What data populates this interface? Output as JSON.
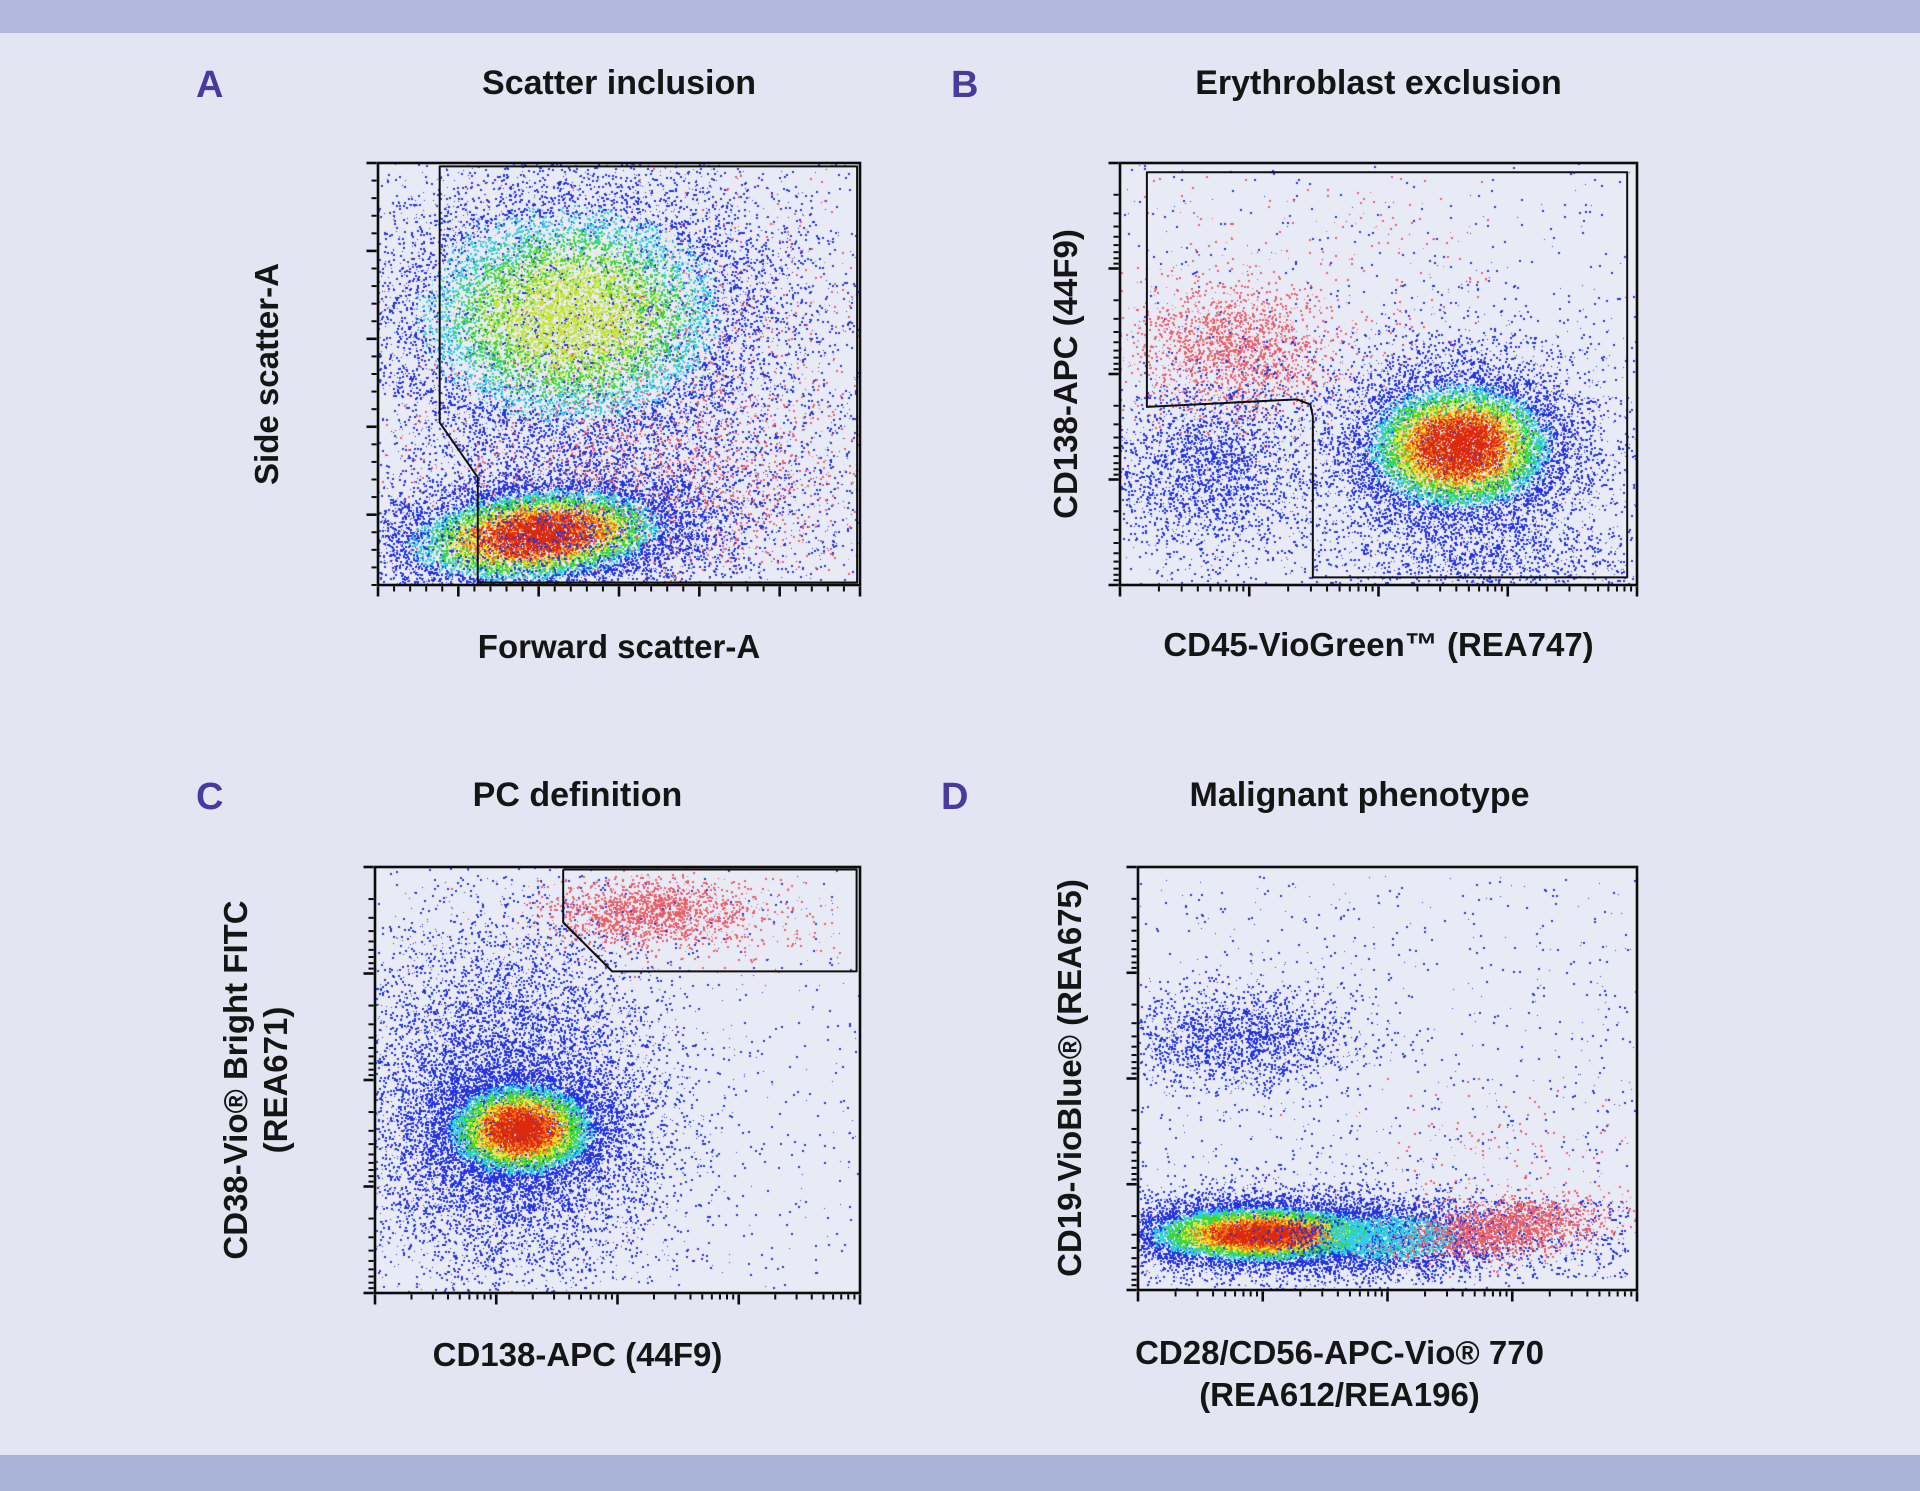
{
  "figure": {
    "background_color": "#e3e5f2",
    "band_color": "#b2b9dc",
    "bottom_band_color": "#aab3d8",
    "panel_letter_color": "#483a9e",
    "title_color": "#151515",
    "plot_background": "#e8eaf5",
    "frame_color": "#0c0c0c",
    "gate_color": "#0f0f0f"
  },
  "palettes": {
    "jet": [
      [
        0.78,
        "#dc2a0e"
      ],
      [
        0.65,
        "#f07818"
      ],
      [
        0.53,
        "#efe32a"
      ],
      [
        0.37,
        "#3cd736"
      ],
      [
        0.25,
        "#30cfe0"
      ],
      [
        -1,
        "#2433e2"
      ]
    ],
    "green": [
      [
        0.74,
        "#c3e531"
      ],
      [
        0.52,
        "#3ed636"
      ],
      [
        0.33,
        "#33cfde"
      ],
      [
        -1,
        "#2433e2"
      ]
    ],
    "cyan": [
      [
        0.45,
        "#33cfde"
      ],
      [
        -1,
        "#2433e2"
      ]
    ],
    "blue": [
      [
        -1,
        "#2433e2"
      ]
    ],
    "pink": [
      [
        -1,
        "#e95f69"
      ]
    ]
  },
  "chart_data": [
    {
      "panel": "A",
      "letter": "A",
      "title": "Scatter inclusion",
      "type": "scatter",
      "subtype": "flow-cytometry-density",
      "xlabel_line1": "Forward scatter-A",
      "xlabel_line2": "",
      "ylabel_line1": "Side scatter-A",
      "ylabel_line2": "",
      "x_axis": {
        "scale": "linear",
        "minors": 30,
        "major_every": 5
      },
      "y_axis": {
        "scale": "linear",
        "minors": 24,
        "major_every": 5
      },
      "gate": {
        "closed": true,
        "points": [
          [
            0.128,
            0.008
          ],
          [
            0.994,
            0.008
          ],
          [
            0.994,
            0.994
          ],
          [
            0.207,
            0.994
          ],
          [
            0.207,
            0.745
          ],
          [
            0.128,
            0.615
          ]
        ]
      },
      "clusters": [
        {
          "type": "flat",
          "palette": "blue",
          "cx": 0.5,
          "cy": 0.4,
          "sx": 0.34,
          "sy": 0.3,
          "count": 4500
        },
        {
          "type": "flat",
          "palette": "blue",
          "cx": 0.45,
          "cy": 0.78,
          "sx": 0.3,
          "sy": 0.13,
          "count": 1800
        },
        {
          "type": "density",
          "palette": "green",
          "cx": 0.4,
          "cy": 0.36,
          "sx": 0.205,
          "sy": 0.165,
          "count": 11000
        },
        {
          "type": "flat",
          "palette": "pink",
          "cx": 0.58,
          "cy": 0.7,
          "sx": 0.27,
          "sy": 0.13,
          "count": 1100
        },
        {
          "type": "flat",
          "palette": "pink",
          "cx": 0.78,
          "cy": 0.42,
          "sx": 0.18,
          "sy": 0.26,
          "count": 420
        },
        {
          "type": "density",
          "palette": "jet",
          "cx": 0.33,
          "cy": 0.88,
          "sx": 0.155,
          "sy": 0.062,
          "rot": -6,
          "count": 9500
        },
        {
          "type": "flat",
          "palette": "blue",
          "cx": 0.42,
          "cy": 0.88,
          "sx": 0.27,
          "sy": 0.09,
          "count": 1500
        },
        {
          "type": "flat",
          "palette": "pink",
          "cx": 0.62,
          "cy": 0.82,
          "sx": 0.18,
          "sy": 0.08,
          "count": 350
        }
      ]
    },
    {
      "panel": "B",
      "letter": "B",
      "title": "Erythroblast exclusion",
      "type": "scatter",
      "subtype": "flow-cytometry-density",
      "xlabel_line1": "CD45-VioGreen™ (REA747)",
      "xlabel_line2": "",
      "ylabel_line1": "CD138-APC (44F9)",
      "ylabel_line2": "",
      "x_axis": {
        "scale": "log",
        "decades": 4
      },
      "y_axis": {
        "scale": "log",
        "decades": 4
      },
      "gate": {
        "closed": true,
        "points": [
          [
            0.052,
            0.022
          ],
          [
            0.981,
            0.022
          ],
          [
            0.981,
            0.982
          ],
          [
            0.373,
            0.982
          ],
          [
            0.373,
            0.6
          ],
          [
            0.368,
            0.572
          ],
          [
            0.342,
            0.56
          ],
          [
            0.052,
            0.578
          ]
        ]
      },
      "clusters": [
        {
          "type": "uniform",
          "palette": "blue",
          "x0": 0.0,
          "y0": 0.0,
          "x1": 1.0,
          "y1": 1.0,
          "count": 650
        },
        {
          "type": "uniform",
          "palette": "pink",
          "x0": 0.02,
          "y0": 0.03,
          "x1": 0.72,
          "y1": 0.52,
          "count": 230
        },
        {
          "type": "flat",
          "palette": "pink",
          "cx": 0.22,
          "cy": 0.44,
          "sx": 0.095,
          "sy": 0.082,
          "count": 1900
        },
        {
          "type": "flat",
          "palette": "blue",
          "cx": 0.165,
          "cy": 0.72,
          "sx": 0.1,
          "sy": 0.105,
          "count": 2300
        },
        {
          "type": "flat",
          "palette": "blue",
          "cx": 0.66,
          "cy": 0.69,
          "sx": 0.175,
          "sy": 0.16,
          "count": 3200
        },
        {
          "type": "density",
          "palette": "jet",
          "cx": 0.655,
          "cy": 0.67,
          "sx": 0.105,
          "sy": 0.088,
          "count": 10000
        },
        {
          "type": "flat",
          "palette": "blue",
          "cx": 0.72,
          "cy": 0.94,
          "sx": 0.16,
          "sy": 0.05,
          "count": 900
        }
      ]
    },
    {
      "panel": "C",
      "letter": "C",
      "title": "PC definition",
      "type": "scatter",
      "subtype": "flow-cytometry-density",
      "xlabel_line1": "CD138-APC (44F9)",
      "xlabel_line2": "",
      "ylabel_line1": "CD38-Vio® Bright FITC",
      "ylabel_line2": "(REA671)",
      "x_axis": {
        "scale": "log",
        "decades": 4
      },
      "y_axis": {
        "scale": "log",
        "decades": 4
      },
      "gate": {
        "closed": false,
        "points": [
          [
            0.388,
            0.006
          ],
          [
            0.388,
            0.13
          ],
          [
            0.489,
            0.245
          ],
          [
            0.993,
            0.245
          ],
          [
            0.993,
            0.006
          ],
          [
            0.388,
            0.006
          ]
        ]
      },
      "clusters": [
        {
          "type": "uniform",
          "palette": "blue",
          "x0": 0.0,
          "y0": 0.0,
          "x1": 1.0,
          "y1": 1.0,
          "count": 300
        },
        {
          "type": "flat",
          "palette": "blue",
          "cx": 0.27,
          "cy": 0.52,
          "sx": 0.165,
          "sy": 0.205,
          "count": 8500
        },
        {
          "type": "flat",
          "palette": "blue",
          "cx": 0.28,
          "cy": 0.75,
          "sx": 0.16,
          "sy": 0.12,
          "count": 1800
        },
        {
          "type": "density",
          "palette": "jet",
          "cx": 0.3,
          "cy": 0.615,
          "sx": 0.088,
          "sy": 0.063,
          "count": 8000
        },
        {
          "type": "flat",
          "palette": "pink",
          "cx": 0.565,
          "cy": 0.105,
          "sx": 0.1,
          "sy": 0.042,
          "count": 1500
        },
        {
          "type": "flat",
          "palette": "pink",
          "cx": 0.72,
          "cy": 0.12,
          "sx": 0.15,
          "sy": 0.055,
          "count": 260
        },
        {
          "type": "uniform",
          "palette": "blue",
          "x0": 0.5,
          "y0": 0.05,
          "x1": 1.0,
          "y1": 0.95,
          "count": 200
        }
      ]
    },
    {
      "panel": "D",
      "letter": "D",
      "title": "Malignant phenotype",
      "type": "scatter",
      "subtype": "flow-cytometry-density",
      "xlabel_line1": "CD28/CD56-APC-Vio® 770",
      "xlabel_line2": "(REA612/REA196)",
      "ylabel_line1": "CD19-VioBlue® (REA675)",
      "ylabel_line2": "",
      "x_axis": {
        "scale": "log",
        "decades": 4
      },
      "y_axis": {
        "scale": "log",
        "decades": 4
      },
      "gate": null,
      "clusters": [
        {
          "type": "uniform",
          "palette": "blue",
          "x0": 0.0,
          "y0": 0.02,
          "x1": 1.0,
          "y1": 0.72,
          "count": 650
        },
        {
          "type": "flat",
          "palette": "blue",
          "cx": 0.2,
          "cy": 0.4,
          "sx": 0.115,
          "sy": 0.062,
          "count": 1900
        },
        {
          "type": "flat",
          "palette": "blue",
          "cx": 0.3,
          "cy": 0.868,
          "sx": 0.23,
          "sy": 0.07,
          "count": 2600
        },
        {
          "type": "uniform",
          "palette": "blue",
          "x0": 0.55,
          "y0": 0.78,
          "x1": 0.98,
          "y1": 0.97,
          "count": 600
        },
        {
          "type": "density",
          "palette": "jet",
          "cx": 0.25,
          "cy": 0.866,
          "sx": 0.135,
          "sy": 0.038,
          "count": 10000
        },
        {
          "type": "density",
          "palette": "cyan",
          "cx": 0.5,
          "cy": 0.875,
          "sx": 0.11,
          "sy": 0.042,
          "count": 2400
        },
        {
          "type": "flat",
          "palette": "pink",
          "cx": 0.72,
          "cy": 0.7,
          "sx": 0.14,
          "sy": 0.1,
          "count": 170
        },
        {
          "type": "flat",
          "palette": "pink",
          "cx": 0.735,
          "cy": 0.852,
          "sx": 0.095,
          "sy": 0.032,
          "rot": -9,
          "count": 1800
        }
      ]
    }
  ]
}
